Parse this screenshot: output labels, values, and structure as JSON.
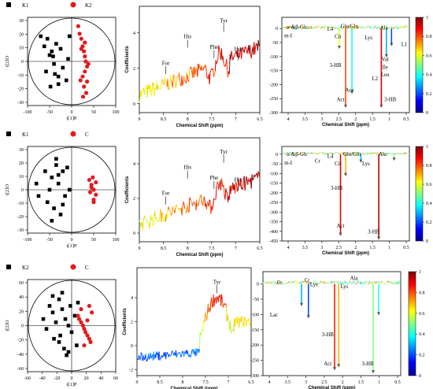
{
  "rows": [
    {
      "pca": {
        "legend": [
          {
            "label": "K1",
            "marker": "square",
            "color": "#000000"
          },
          {
            "label": "K2",
            "marker": "circle",
            "color": "#e31a1c"
          }
        ],
        "xlabel": "t[1]P",
        "ylabel": "t[2]O",
        "xticks": [
          "-100",
          "-50",
          "0",
          "50",
          "100"
        ],
        "yticks": [
          "30",
          "20",
          "10",
          "0",
          "-10",
          "-20",
          "-30"
        ]
      },
      "coef": {
        "ylabel": "Coefficients",
        "xlabel": "Chemical Shift (ppm)",
        "xticks": [
          "9",
          "8.5",
          "8",
          "7.5",
          "7",
          "6.5"
        ],
        "yticks": [
          "4",
          "2",
          "0"
        ],
        "annotations": [
          "For",
          "His",
          "Phe",
          "Tyr",
          "His"
        ]
      },
      "spec": {
        "xlabel": "Chemical Shift (ppm)",
        "xticks": [
          "4",
          "3.5",
          "3",
          "2.5",
          "2",
          "1.5",
          "1",
          "0.5"
        ],
        "yticks": [
          "0",
          "-50",
          "-100",
          "-150",
          "-200",
          "-250",
          "-300"
        ],
        "colorbar_ticks": [
          "1",
          "0.8",
          "0.6",
          "0.4",
          "0.2",
          "0"
        ],
        "annotations": [
          "α-&β-Glc",
          "m-I",
          "L4",
          "Cit",
          "Glu/Gln",
          "Lys",
          "Ala",
          "L1",
          "3-HB",
          "Act",
          "Ace",
          "L2",
          "Val",
          "Ile",
          "Leu",
          "3-HB"
        ]
      }
    },
    {
      "pca": {
        "legend": [
          {
            "label": "K1",
            "marker": "square",
            "color": "#000000"
          },
          {
            "label": "C",
            "marker": "circle",
            "color": "#e31a1c"
          }
        ],
        "xlabel": "t[1]P",
        "ylabel": "t[2]O",
        "xticks": [
          "-100",
          "-50",
          "0",
          "50",
          "100"
        ],
        "yticks": [
          "30",
          "20",
          "10",
          "0",
          "-10",
          "-20",
          "-30"
        ]
      },
      "coef": {
        "ylabel": "Coefficients",
        "xlabel": "Chemical Shift (ppm)",
        "xticks": [
          "9",
          "8.5",
          "8",
          "7.5",
          "7",
          "6.5"
        ],
        "yticks": [
          "4",
          "2",
          "0"
        ],
        "annotations": [
          "For",
          "His",
          "Phe",
          "Tyr",
          "His"
        ]
      },
      "spec": {
        "xlabel": "Chemical Shift (ppm)",
        "xticks": [
          "4",
          "3.5",
          "3",
          "2.5",
          "2",
          "1.5",
          "1",
          "0.5"
        ],
        "yticks": [
          "0",
          "-50",
          "-100",
          "-150",
          "-200",
          "-250",
          "-300",
          "-350",
          "-400",
          "-450"
        ],
        "colorbar_ticks": [
          "1",
          "0.8",
          "0.6",
          "0.4",
          "0.2",
          "0"
        ],
        "annotations": [
          "α-&β-Glc",
          "m-I",
          "Cr",
          "L4",
          "Cit",
          "Glu/Gln",
          "Lys",
          "Ala",
          "3-HB",
          "Act",
          "3-HB"
        ]
      }
    },
    {
      "pca": {
        "legend": [
          {
            "label": "K2",
            "marker": "square",
            "color": "#000000"
          },
          {
            "label": "C",
            "marker": "circle",
            "color": "#e31a1c"
          }
        ],
        "xlabel": "t[1]P",
        "ylabel": "t[2]O",
        "xticks": [
          "-60",
          "-40",
          "-20",
          "0",
          "20",
          "40",
          "60"
        ],
        "yticks": [
          "60",
          "40",
          "20",
          "0",
          "-20",
          "-40",
          "-60"
        ]
      },
      "coef": {
        "ylabel": "Coefficients",
        "xlabel": "Chemical Shift (ppm)",
        "xticks": [
          "9",
          "8.5",
          "8",
          "7.5",
          "7",
          "6.5"
        ],
        "yticks": [
          "4",
          "2",
          "0",
          "-2"
        ],
        "annotations": [
          "Tyr"
        ]
      },
      "spec": {
        "xlabel": "Chemical Shift (ppm)",
        "xticks": [
          "4",
          "3.5",
          "3",
          "2.5",
          "2",
          "1.5",
          "1",
          "0.5"
        ],
        "yticks": [
          "0",
          "-50",
          "-100",
          "-150",
          "-200",
          "-250",
          "-300"
        ],
        "colorbar_ticks": [
          "1",
          "0.8",
          "0.6",
          "0.4",
          "0.2",
          "0"
        ],
        "annotations": [
          "Cr",
          "Cr",
          "Lys",
          "Lac",
          "Ala",
          "Lys",
          "3-HB",
          "Act",
          "3-HB"
        ]
      }
    }
  ],
  "chart_data": [
    {
      "type": "scatter",
      "series": [
        {
          "name": "K1",
          "x": [
            -70,
            -62,
            -55,
            -50,
            -45,
            -40,
            -38,
            -35,
            -30,
            -25,
            -20,
            -12,
            -8,
            -5,
            -58,
            -48,
            -42,
            -30
          ],
          "y": [
            20,
            12,
            18,
            5,
            8,
            -2,
            -10,
            14,
            -18,
            10,
            -5,
            -15,
            2,
            20,
            -8,
            -20,
            4,
            -12
          ]
        },
        {
          "name": "K2",
          "x": [
            15,
            18,
            22,
            25,
            28,
            30,
            32,
            35,
            30,
            25,
            20,
            28,
            33,
            26,
            22,
            30,
            35,
            38
          ],
          "y": [
            28,
            22,
            18,
            12,
            8,
            4,
            0,
            -4,
            -8,
            -12,
            -15,
            -20,
            -25,
            -28,
            10,
            15,
            -16,
            -2
          ]
        }
      ]
    },
    {
      "type": "line",
      "x_range": [
        9,
        6.5
      ],
      "y_range": [
        -0.5,
        5.5
      ],
      "description_values": "coefficient trace rising from ~0.5 to ~3.5"
    },
    {
      "type": "line",
      "x_range": [
        4.2,
        0.5
      ],
      "y_range": [
        -300,
        40
      ]
    },
    {
      "type": "scatter",
      "series": [
        {
          "name": "K1",
          "x": [
            -80,
            -75,
            -60,
            -55,
            -50,
            -45,
            -40,
            -35,
            -30,
            -25,
            -20,
            -15,
            -10,
            -5,
            -45,
            -35,
            -20,
            -30
          ],
          "y": [
            5,
            -5,
            15,
            -10,
            0,
            10,
            -15,
            20,
            5,
            -20,
            15,
            -5,
            18,
            0,
            -25,
            25,
            -12,
            12
          ]
        },
        {
          "name": "C",
          "x": [
            40,
            45,
            50,
            55,
            50,
            45,
            55,
            50,
            42,
            48
          ],
          "y": [
            8,
            4,
            0,
            -4,
            -8,
            2,
            6,
            -10,
            -2,
            10
          ]
        }
      ]
    },
    {
      "type": "line",
      "x_range": [
        9,
        6.5
      ],
      "y_range": [
        -0.5,
        5.5
      ]
    },
    {
      "type": "line",
      "x_range": [
        4.2,
        0.5
      ],
      "y_range": [
        -450,
        40
      ]
    },
    {
      "type": "scatter",
      "series": [
        {
          "name": "K2",
          "x": [
            -45,
            -40,
            -35,
            -30,
            -28,
            -25,
            -20,
            -18,
            -15,
            -12,
            -10,
            -8,
            -5,
            -2,
            0,
            5,
            8,
            10,
            -30,
            -20,
            -15,
            -5
          ],
          "y": [
            10,
            -5,
            30,
            20,
            -20,
            5,
            40,
            -15,
            25,
            -35,
            10,
            -45,
            0,
            30,
            -10,
            15,
            -30,
            35,
            45,
            -25,
            50,
            -40
          ]
        },
        {
          "name": "C",
          "x": [
            10,
            12,
            15,
            18,
            20,
            22,
            25,
            28,
            30,
            32,
            28,
            20,
            15,
            25
          ],
          "y": [
            15,
            10,
            5,
            0,
            -5,
            -10,
            -15,
            -20,
            -25,
            20,
            30,
            -30,
            25,
            8
          ]
        }
      ]
    },
    {
      "type": "line",
      "x_range": [
        9,
        6.5
      ],
      "y_range": [
        -2.5,
        6.5
      ]
    },
    {
      "type": "line",
      "x_range": [
        4.2,
        0.5
      ],
      "y_range": [
        -300,
        40
      ]
    }
  ]
}
